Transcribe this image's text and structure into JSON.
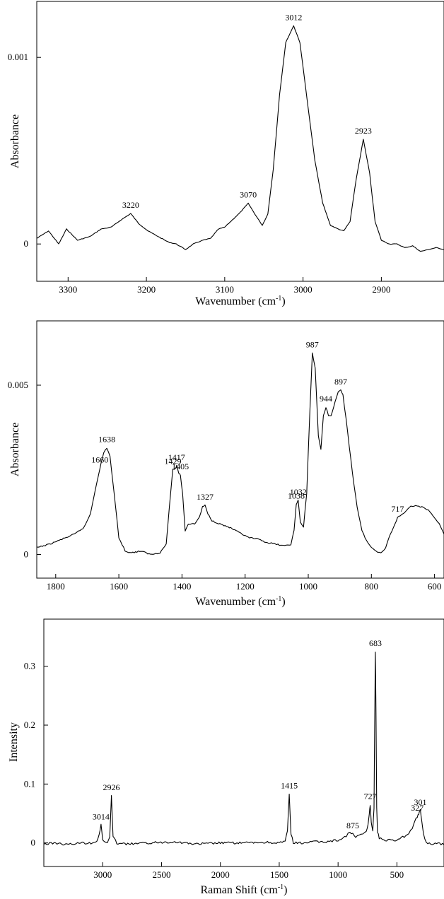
{
  "chart_data": [
    {
      "type": "line",
      "xlabel": "Wavenumber (cm",
      "xlabel_sup": "-1",
      "xlabel_end": ")",
      "ylabel": "Absorbance",
      "xlim": [
        3340,
        2820
      ],
      "ylim": [
        -0.0002,
        0.0013
      ],
      "x_reversed": true,
      "grid": false,
      "xticks": [
        3300,
        3200,
        3100,
        3000,
        2900
      ],
      "yticks": [
        {
          "value": 0,
          "label": "0"
        },
        {
          "value": 0.001,
          "label": "0.001"
        }
      ],
      "peaks": [
        {
          "x": 3220,
          "y": 0.000163,
          "label": "3220"
        },
        {
          "x": 3070,
          "y": 0.000218,
          "label": "3070"
        },
        {
          "x": 3012,
          "y": 0.00117,
          "label": "3012"
        },
        {
          "x": 2923,
          "y": 0.000561,
          "label": "2923"
        }
      ],
      "series": [
        {
          "x": [
            3340,
            3325,
            3312,
            3302,
            3288,
            3272,
            3258,
            3245,
            3232,
            3220,
            3210,
            3198,
            3185,
            3172,
            3162,
            3150,
            3140,
            3128,
            3118,
            3108,
            3100,
            3090,
            3080,
            3070,
            3060,
            3052,
            3045,
            3038,
            3030,
            3022,
            3012,
            3004,
            2995,
            2985,
            2975,
            2965,
            2955,
            2948,
            2940,
            2932,
            2923,
            2915,
            2908,
            2900,
            2890,
            2880,
            2870,
            2860,
            2850,
            2840,
            2830,
            2820
          ],
          "y": [
            3e-05,
            7e-05,
            0.0,
            8e-05,
            2e-05,
            4e-05,
            8e-05,
            9e-05,
            0.00013,
            0.000163,
            0.00011,
            7e-05,
            4e-05,
            1e-05,
            0.0,
            -3e-05,
            0.0,
            2e-05,
            3e-05,
            8e-05,
            9e-05,
            0.00013,
            0.00017,
            0.000218,
            0.00015,
            0.0001,
            0.00016,
            0.0004,
            0.0008,
            0.00108,
            0.00117,
            0.00108,
            0.00078,
            0.00045,
            0.00022,
            0.0001,
            8e-05,
            7e-05,
            0.00012,
            0.00035,
            0.000561,
            0.00038,
            0.00012,
            2e-05,
            0.0,
            0.0,
            -2e-05,
            -1e-05,
            -4e-05,
            -3e-05,
            -2e-05,
            -3e-05
          ]
        }
      ]
    },
    {
      "type": "line",
      "xlabel": "Wavenumber (cm",
      "xlabel_sup": "-1",
      "xlabel_end": ")",
      "ylabel": "Absorbance",
      "xlim": [
        1860,
        570
      ],
      "ylim": [
        -0.0007,
        0.0069
      ],
      "x_reversed": true,
      "grid": false,
      "xticks": [
        1800,
        1600,
        1400,
        1200,
        1000,
        800,
        600
      ],
      "yticks": [
        {
          "value": 0,
          "label": "0"
        },
        {
          "value": 0.005,
          "label": "0.005"
        }
      ],
      "peaks": [
        {
          "x": 1660,
          "y": 0.00255,
          "label": "1660"
        },
        {
          "x": 1638,
          "y": 0.00315,
          "label": "1638"
        },
        {
          "x": 1429,
          "y": 0.0025,
          "label": "1429"
        },
        {
          "x": 1417,
          "y": 0.00262,
          "label": "1417"
        },
        {
          "x": 1405,
          "y": 0.00235,
          "label": "1405"
        },
        {
          "x": 1327,
          "y": 0.00145,
          "label": "1327"
        },
        {
          "x": 1038,
          "y": 0.00148,
          "label": "1038"
        },
        {
          "x": 1032,
          "y": 0.0016,
          "label": "1032"
        },
        {
          "x": 987,
          "y": 0.00595,
          "label": "987"
        },
        {
          "x": 944,
          "y": 0.00435,
          "label": "944"
        },
        {
          "x": 897,
          "y": 0.00485,
          "label": "897"
        },
        {
          "x": 717,
          "y": 0.0011,
          "label": "717"
        }
      ],
      "series": [
        {
          "x": [
            1860,
            1820,
            1780,
            1740,
            1710,
            1690,
            1675,
            1660,
            1648,
            1638,
            1628,
            1615,
            1600,
            1580,
            1560,
            1530,
            1500,
            1470,
            1450,
            1440,
            1429,
            1420,
            1417,
            1410,
            1405,
            1398,
            1390,
            1380,
            1360,
            1345,
            1335,
            1327,
            1318,
            1305,
            1280,
            1250,
            1220,
            1190,
            1160,
            1130,
            1100,
            1075,
            1055,
            1045,
            1038,
            1032,
            1025,
            1015,
            1005,
            995,
            987,
            978,
            968,
            960,
            952,
            944,
            936,
            928,
            915,
            905,
            897,
            890,
            880,
            870,
            860,
            845,
            830,
            815,
            800,
            785,
            770,
            755,
            740,
            725,
            717,
            700,
            680,
            660,
            640,
            620,
            600,
            585,
            570
          ],
          "y": [
            0.0002,
            0.0003,
            0.00045,
            0.0006,
            0.0008,
            0.0012,
            0.0019,
            0.00255,
            0.003,
            0.00315,
            0.0029,
            0.0018,
            0.0005,
            0.0001,
            5e-05,
            0.0001,
            0.0,
            5e-05,
            0.0003,
            0.0014,
            0.0025,
            0.00255,
            0.00262,
            0.0024,
            0.00235,
            0.0018,
            0.0007,
            0.0009,
            0.0009,
            0.0011,
            0.0014,
            0.00145,
            0.0012,
            0.001,
            0.0009,
            0.0008,
            0.00065,
            0.0005,
            0.00045,
            0.00035,
            0.0003,
            0.00025,
            0.0003,
            0.0007,
            0.00148,
            0.0016,
            0.00095,
            0.0008,
            0.0018,
            0.0042,
            0.00595,
            0.0055,
            0.0035,
            0.0031,
            0.0041,
            0.00435,
            0.0041,
            0.0041,
            0.0045,
            0.0048,
            0.00485,
            0.0047,
            0.004,
            0.0032,
            0.0024,
            0.0014,
            0.0007,
            0.0004,
            0.0002,
            0.0001,
            5e-05,
            0.0002,
            0.0006,
            0.0009,
            0.0011,
            0.0012,
            0.0014,
            0.00145,
            0.0014,
            0.0013,
            0.0011,
            0.0009,
            0.0006
          ]
        }
      ]
    },
    {
      "type": "line",
      "xlabel": "Raman Shift (cm",
      "xlabel_sup": "-1",
      "xlabel_end": ")",
      "ylabel": "Intensity",
      "xlim": [
        3500,
        100
      ],
      "ylim": [
        -0.04,
        0.38
      ],
      "x_reversed": true,
      "grid": false,
      "xticks": [
        3000,
        2500,
        2000,
        1500,
        1000,
        500
      ],
      "yticks": [
        {
          "value": 0,
          "label": "0"
        },
        {
          "value": 0.1,
          "label": "0.1"
        },
        {
          "value": 0.2,
          "label": "0.2"
        },
        {
          "value": 0.3,
          "label": "0.3"
        }
      ],
      "peaks": [
        {
          "x": 3014,
          "y": 0.03,
          "label": "3014"
        },
        {
          "x": 2926,
          "y": 0.08,
          "label": "2926"
        },
        {
          "x": 1415,
          "y": 0.083,
          "label": "1415"
        },
        {
          "x": 875,
          "y": 0.015,
          "label": "875"
        },
        {
          "x": 727,
          "y": 0.065,
          "label": "727"
        },
        {
          "x": 683,
          "y": 0.325,
          "label": "683"
        },
        {
          "x": 327,
          "y": 0.045,
          "label": "327"
        },
        {
          "x": 301,
          "y": 0.055,
          "label": "301"
        }
      ],
      "series": [
        {
          "x": [
            3500,
            3400,
            3300,
            3200,
            3100,
            3050,
            3030,
            3014,
            3000,
            2960,
            2940,
            2926,
            2912,
            2880,
            2800,
            2600,
            2400,
            2200,
            2000,
            1800,
            1600,
            1500,
            1450,
            1430,
            1415,
            1400,
            1380,
            1300,
            1200,
            1100,
            1000,
            960,
            930,
            900,
            875,
            850,
            820,
            790,
            760,
            745,
            735,
            727,
            718,
            705,
            695,
            688,
            683,
            678,
            672,
            665,
            650,
            600,
            550,
            500,
            450,
            400,
            370,
            340,
            327,
            315,
            301,
            290,
            275,
            250,
            200,
            150,
            100
          ],
          "y": [
            -0.002,
            0.0,
            -0.003,
            0.0,
            0.0,
            0.003,
            0.015,
            0.03,
            0.005,
            0.0,
            0.01,
            0.08,
            0.01,
            0.0,
            -0.002,
            0.0,
            0.002,
            -0.002,
            0.0,
            0.0,
            0.001,
            0.0,
            0.002,
            0.02,
            0.083,
            0.015,
            0.0,
            0.0,
            0.002,
            0.002,
            0.005,
            0.008,
            0.012,
            0.018,
            0.015,
            0.01,
            0.012,
            0.015,
            0.02,
            0.03,
            0.05,
            0.065,
            0.035,
            0.02,
            0.06,
            0.22,
            0.325,
            0.22,
            0.06,
            0.02,
            0.008,
            0.004,
            0.005,
            0.005,
            0.01,
            0.015,
            0.025,
            0.04,
            0.045,
            0.05,
            0.055,
            0.04,
            0.015,
            0.0,
            -0.002,
            0.0,
            -0.003
          ]
        }
      ]
    }
  ]
}
